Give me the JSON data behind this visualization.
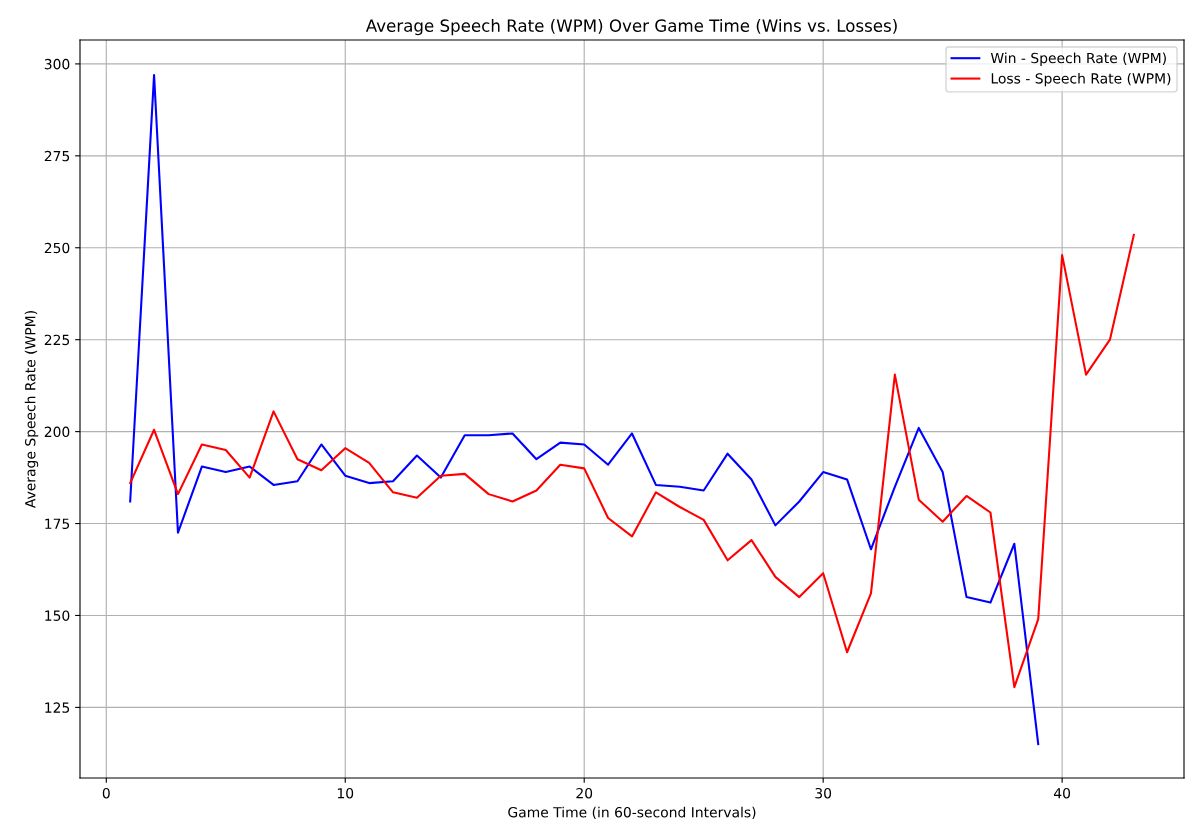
{
  "chart_data": {
    "type": "line",
    "title": "Average Speech Rate (WPM) Over Game Time (Wins vs. Losses)",
    "xlabel": "Game Time (in 60-second Intervals)",
    "ylabel": "Average Speech Rate (WPM)",
    "xlim": [
      -1.1,
      45.1
    ],
    "xticks": [
      0,
      10,
      20,
      30,
      40
    ],
    "ylim": [
      105.8,
      306.5
    ],
    "yticks": [
      125,
      150,
      175,
      200,
      225,
      250,
      275,
      300
    ],
    "grid": true,
    "legend": "top right",
    "marker": "none",
    "line_style": "solid",
    "series": [
      {
        "name": "Win - Speech Rate (WPM)",
        "color": "#0000ff",
        "x": [
          1,
          2,
          3,
          4,
          5,
          6,
          7,
          8,
          9,
          10,
          11,
          12,
          13,
          14,
          15,
          16,
          17,
          18,
          19,
          20,
          21,
          22,
          23,
          24,
          25,
          26,
          27,
          28,
          29,
          30,
          31,
          32,
          33,
          34,
          35,
          36,
          37,
          38,
          39
        ],
        "values": [
          181,
          297,
          172.5,
          190.5,
          189,
          190.5,
          185.5,
          186.5,
          196.5,
          188,
          186,
          186.5,
          193.5,
          187.5,
          199,
          199,
          199.5,
          192.5,
          197,
          196.5,
          191,
          199.5,
          185.5,
          185,
          184,
          194,
          187,
          174.5,
          181,
          189,
          187,
          168,
          185,
          201,
          189,
          155,
          153.5,
          169.5,
          115
        ]
      },
      {
        "name": "Loss - Speech Rate (WPM)",
        "color": "#ff0000",
        "x": [
          1,
          2,
          3,
          4,
          5,
          6,
          7,
          8,
          9,
          10,
          11,
          12,
          13,
          14,
          15,
          16,
          17,
          18,
          19,
          20,
          21,
          22,
          23,
          24,
          25,
          26,
          27,
          28,
          29,
          30,
          31,
          32,
          33,
          34,
          35,
          36,
          37,
          38,
          39,
          40,
          41,
          42,
          43
        ],
        "values": [
          186,
          200.5,
          183,
          196.5,
          195,
          187.5,
          205.5,
          192.5,
          189.5,
          195.5,
          191.5,
          183.5,
          182,
          188,
          188.5,
          183,
          181,
          184,
          191,
          190,
          176.5,
          171.5,
          183.5,
          179.5,
          176,
          165,
          170.5,
          160.5,
          155,
          161.5,
          140,
          156,
          215.5,
          181.5,
          175.5,
          182.5,
          178,
          130.5,
          149,
          248,
          215.5,
          225,
          253.5
        ]
      }
    ]
  }
}
